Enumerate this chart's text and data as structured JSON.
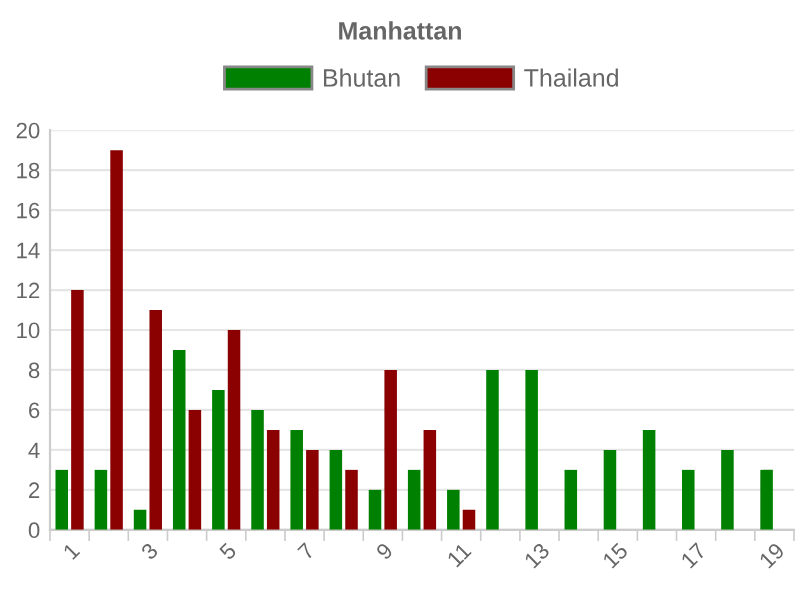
{
  "chart_data": {
    "type": "bar",
    "title": "Manhattan",
    "categories": [
      "1",
      null,
      "3",
      null,
      "5",
      null,
      "7",
      null,
      "9",
      null,
      "11",
      null,
      "13",
      null,
      "15",
      null,
      "17",
      null,
      "19"
    ],
    "series": [
      {
        "name": "Bhutan",
        "color": "#008000",
        "values": [
          3,
          3,
          1,
          9,
          7,
          6,
          5,
          4,
          2,
          3,
          2,
          8,
          8,
          3,
          4,
          5,
          3,
          4,
          3
        ]
      },
      {
        "name": "Thailand",
        "color": "#8b0000",
        "values": [
          12,
          19,
          11,
          6,
          10,
          5,
          4,
          3,
          8,
          5,
          1,
          0,
          0,
          0,
          0,
          0,
          0,
          0,
          0
        ]
      }
    ],
    "ylim": [
      0,
      20
    ],
    "yticks": [
      0,
      2,
      4,
      6,
      8,
      10,
      12,
      14,
      16,
      18,
      20
    ],
    "grid": "y",
    "legend": "top"
  }
}
